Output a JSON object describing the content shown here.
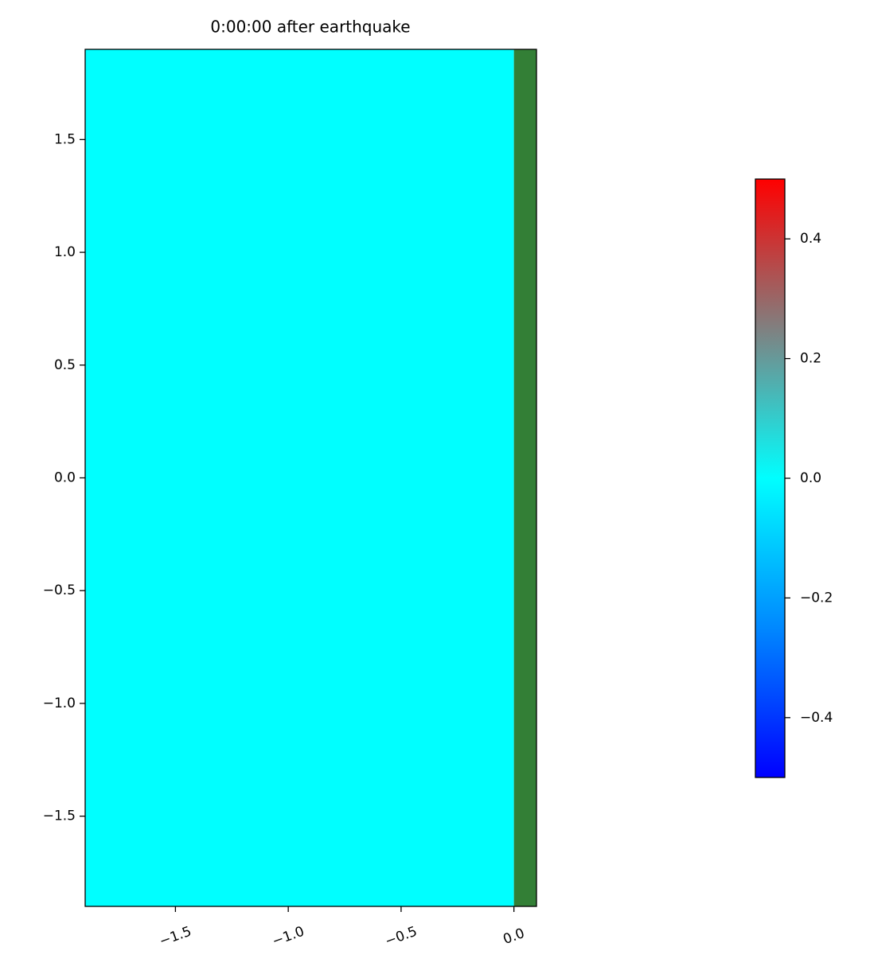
{
  "chart_data": {
    "type": "heatmap",
    "title": "0:00:00 after earthquake",
    "xlim": [
      -1.9,
      0.1
    ],
    "ylim": [
      -1.9,
      1.9
    ],
    "xticks": [
      {
        "value": -1.5,
        "label": "−1.5"
      },
      {
        "value": -1.0,
        "label": "−1.0"
      },
      {
        "value": -0.5,
        "label": "−0.5"
      },
      {
        "value": 0,
        "label": "0.0"
      }
    ],
    "yticks": [
      1.5,
      {
        "value": 1.0,
        "label": "1.0"
      },
      0.5,
      {
        "value": 0,
        "label": "0.0"
      },
      {
        "value": -0.5,
        "label": "−0.5"
      },
      {
        "value": -1.0,
        "label": "−1.0"
      },
      {
        "value": -1.5,
        "label": "−1.5"
      }
    ],
    "water": {
      "value": 0,
      "x": [
        -1.9,
        0
      ]
    },
    "land": {
      "color": "#337f36",
      "x": [
        0,
        0.1
      ]
    },
    "colorbar": {
      "lim": [
        -0.5,
        0.5
      ],
      "ticks": [
        0.4,
        0.2,
        {
          "value": 0,
          "label": "0.0"
        },
        {
          "value": -0.2,
          "label": "−0.2"
        },
        {
          "value": -0.4,
          "label": "−0.4"
        }
      ],
      "colors": [
        "#0000ff",
        "#0088ff",
        "#00ffff",
        "#808080",
        "#ff0000"
      ]
    }
  }
}
